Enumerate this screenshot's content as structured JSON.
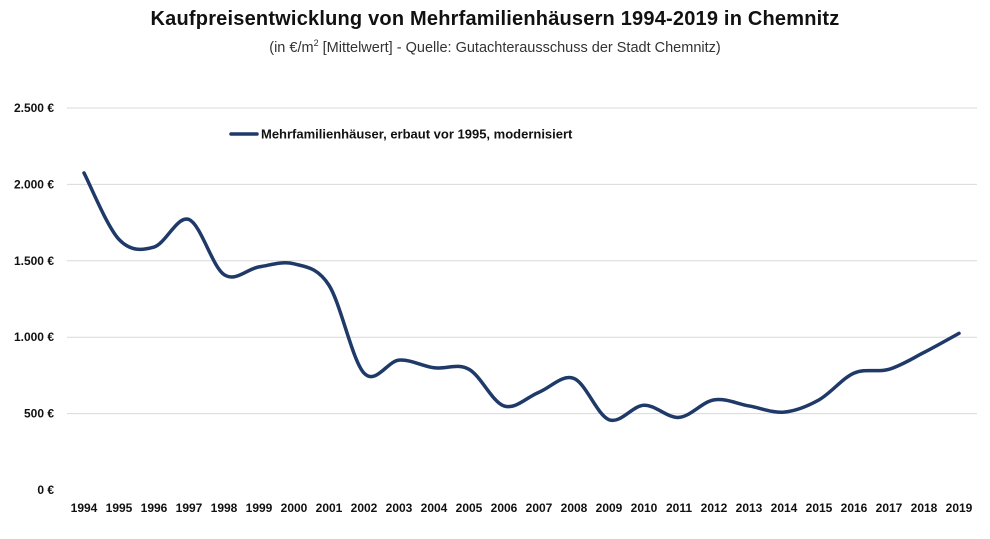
{
  "chart_data": {
    "type": "line",
    "title": "Kaufpreisentwicklung von Mehrfamilienhäusern 1994-2019 in Chemnitz",
    "subtitle_pre": "(in €/m",
    "subtitle_sup": "2",
    "subtitle_post": " [Mittelwert] - Quelle: Gutachterausschuss der Stadt Chemnitz)",
    "xlabel": "",
    "ylabel": "",
    "ylim": [
      0,
      2500
    ],
    "yticks": [
      0,
      500,
      1000,
      1500,
      2000,
      2500
    ],
    "ytick_labels": [
      "0 €",
      "500 €",
      "1.000 €",
      "1.500 €",
      "2.000 €",
      "2.500 €"
    ],
    "categories": [
      "1994",
      "1995",
      "1996",
      "1997",
      "1998",
      "1999",
      "2000",
      "2001",
      "2002",
      "2003",
      "2004",
      "2005",
      "2006",
      "2007",
      "2008",
      "2009",
      "2010",
      "2011",
      "2012",
      "2013",
      "2014",
      "2015",
      "2016",
      "2017",
      "2018",
      "2019"
    ],
    "grid": true,
    "legend_position": "top-left",
    "series": [
      {
        "name": "Mehrfamilienhäuser, erbaut vor 1995, modernisiert",
        "color": "#1f3a68",
        "values": [
          2075,
          1640,
          1590,
          1770,
          1410,
          1460,
          1480,
          1340,
          765,
          850,
          800,
          790,
          550,
          640,
          730,
          460,
          555,
          475,
          590,
          550,
          510,
          590,
          765,
          790,
          900,
          1025
        ]
      }
    ]
  }
}
